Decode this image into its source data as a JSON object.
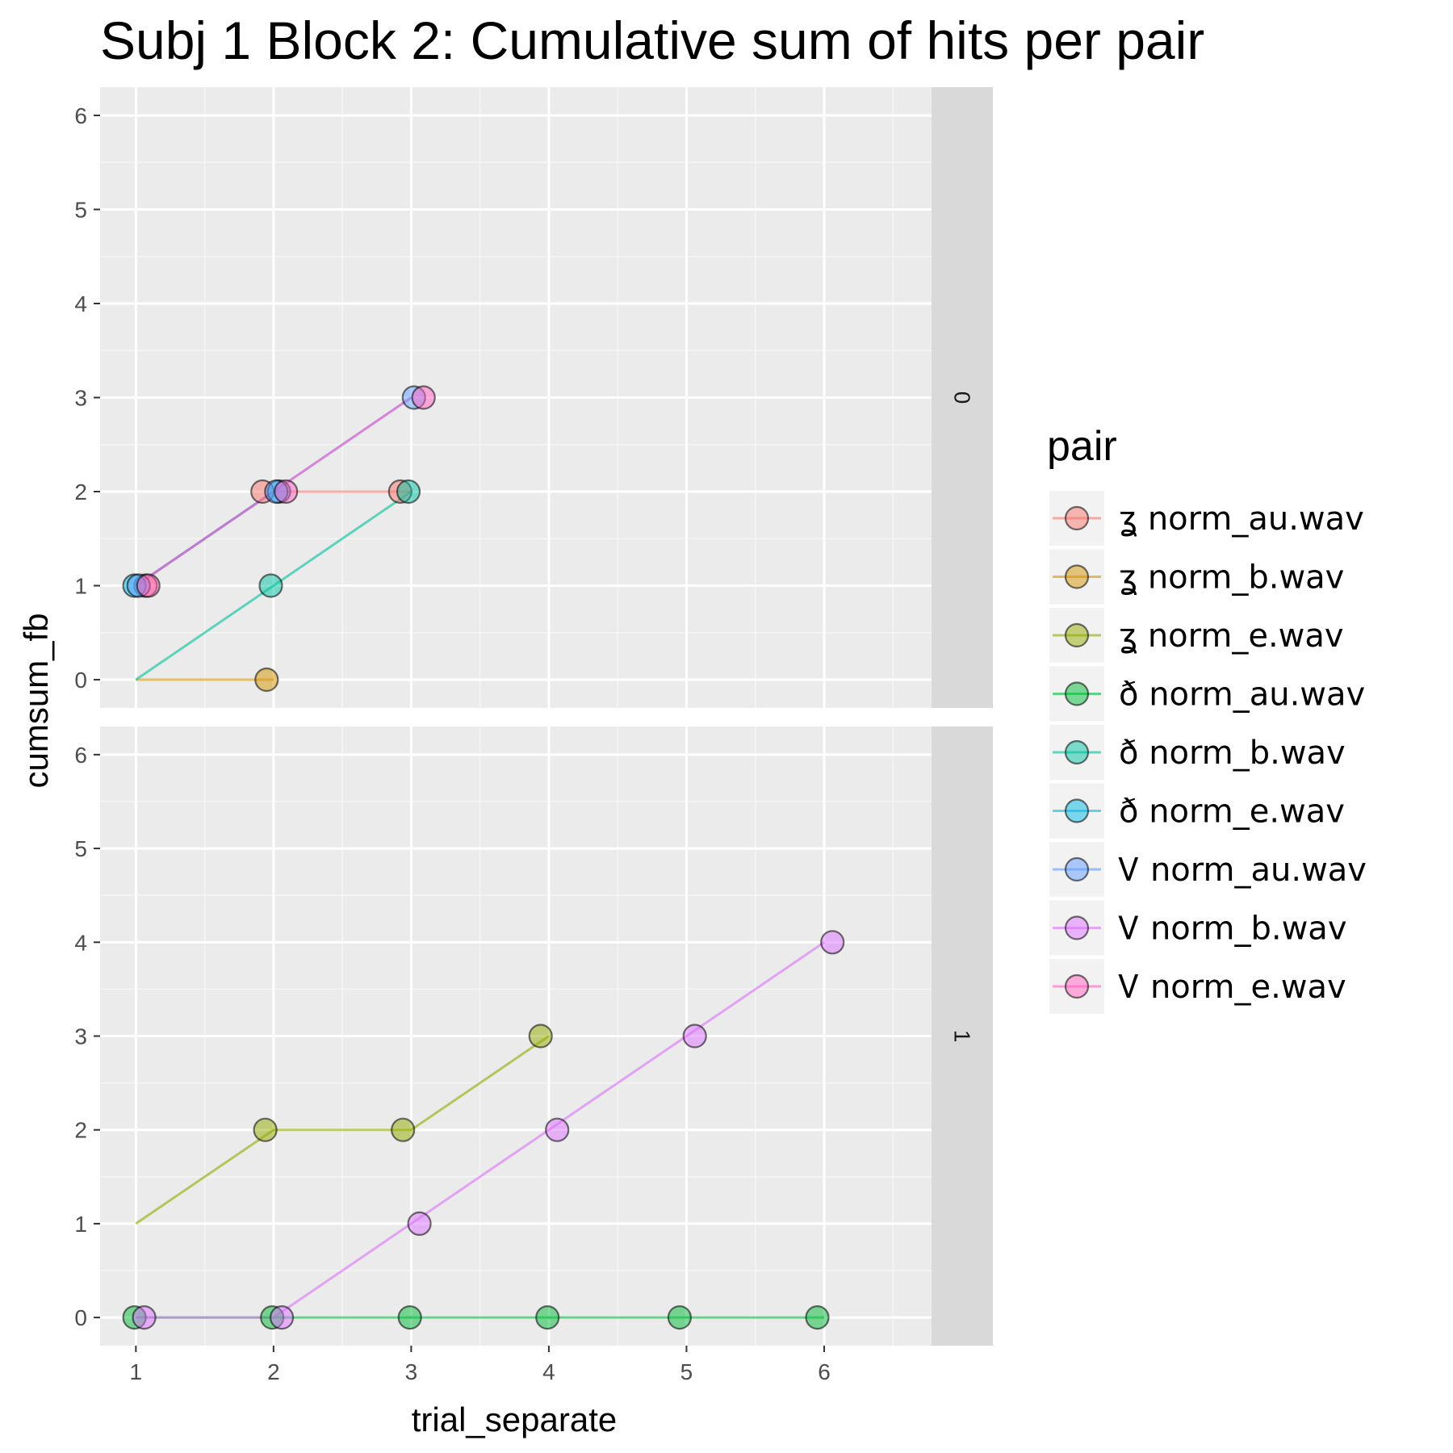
{
  "chart_data": {
    "type": "scatter",
    "title": "Subj 1 Block 2: Cumulative sum of hits per pair",
    "xlabel": "trial_separate",
    "ylabel": "cumsum_fb",
    "xlim": [
      0.74,
      6.78
    ],
    "ylim": [
      -0.3,
      6.3
    ],
    "x_ticks": [
      1,
      2,
      3,
      4,
      5,
      6
    ],
    "y_ticks": [
      0,
      1,
      2,
      3,
      4,
      5,
      6
    ],
    "grid": true,
    "legend_title": "pair",
    "legend_position": "right",
    "facets": [
      {
        "label": "0"
      },
      {
        "label": "1"
      }
    ],
    "series": [
      {
        "name": "ʓ norm_au.wav",
        "color": "#F8766D",
        "panels": [
          {
            "line": [
              [
                1,
                1
              ],
              [
                2,
                2
              ],
              [
                3,
                2
              ]
            ],
            "points": [
              [
                1.07,
                1
              ],
              [
                1.92,
                2
              ],
              [
                2.92,
                2
              ]
            ]
          },
          {
            "line": [],
            "points": []
          }
        ]
      },
      {
        "name": "ʓ norm_b.wav",
        "color": "#D39200",
        "panels": [
          {
            "line": [
              [
                1,
                0
              ],
              [
                2,
                0
              ]
            ],
            "points": [
              [
                1.95,
                0
              ]
            ]
          },
          {
            "line": [],
            "points": []
          }
        ]
      },
      {
        "name": "ʓ norm_e.wav",
        "color": "#93AA00",
        "panels": [
          {
            "line": [],
            "points": []
          },
          {
            "line": [
              [
                1,
                1
              ],
              [
                2,
                2
              ],
              [
                3,
                2
              ],
              [
                4,
                3
              ]
            ],
            "points": [
              [
                1.94,
                2
              ],
              [
                2.94,
                2
              ],
              [
                3.94,
                3
              ]
            ]
          }
        ]
      },
      {
        "name": "ð norm_au.wav",
        "color": "#00BA38",
        "panels": [
          {
            "line": [],
            "points": []
          },
          {
            "line": [
              [
                1,
                0
              ],
              [
                2,
                0
              ],
              [
                3,
                0
              ],
              [
                4,
                0
              ],
              [
                5,
                0
              ],
              [
                6,
                0
              ]
            ],
            "points": [
              [
                0.99,
                0
              ],
              [
                1.99,
                0
              ],
              [
                2.99,
                0
              ],
              [
                3.99,
                0
              ],
              [
                4.95,
                0
              ],
              [
                5.95,
                0
              ]
            ]
          }
        ]
      },
      {
        "name": "ð norm_b.wav",
        "color": "#00C19F",
        "panels": [
          {
            "line": [
              [
                1,
                0
              ],
              [
                2,
                1
              ],
              [
                3,
                2
              ]
            ],
            "points": [
              [
                1.98,
                1
              ],
              [
                2.98,
                2
              ]
            ]
          },
          {
            "line": [],
            "points": []
          }
        ]
      },
      {
        "name": "ð norm_e.wav",
        "color": "#00B9E3",
        "panels": [
          {
            "line": [
              [
                1,
                1
              ],
              [
                2,
                2
              ]
            ],
            "points": [
              [
                0.99,
                1
              ],
              [
                2.04,
                2
              ]
            ]
          },
          {
            "line": [],
            "points": []
          }
        ]
      },
      {
        "name": "Ꮩ norm_au.wav",
        "color": "#619CFF",
        "panels": [
          {
            "line": [
              [
                1,
                1
              ],
              [
                2,
                2
              ],
              [
                3,
                3
              ]
            ],
            "points": [
              [
                1.02,
                1
              ],
              [
                2.02,
                2
              ],
              [
                3.02,
                3
              ]
            ]
          },
          {
            "line": [],
            "points": []
          }
        ]
      },
      {
        "name": "Ꮩ norm_b.wav",
        "color": "#DB72FB",
        "panels": [
          {
            "line": [],
            "points": []
          },
          {
            "line": [
              [
                1,
                0
              ],
              [
                2,
                0
              ],
              [
                3,
                1
              ],
              [
                4,
                2
              ],
              [
                5,
                3
              ],
              [
                6,
                4
              ]
            ],
            "points": [
              [
                1.06,
                0
              ],
              [
                2.06,
                0
              ],
              [
                3.06,
                1
              ],
              [
                4.06,
                2
              ],
              [
                5.06,
                3
              ],
              [
                6.06,
                4
              ]
            ]
          }
        ]
      },
      {
        "name": "Ꮩ norm_e.wav",
        "color": "#FF61C3",
        "panels": [
          {
            "line": [
              [
                1,
                1
              ],
              [
                2,
                2
              ],
              [
                3,
                3
              ]
            ],
            "points": [
              [
                1.09,
                1
              ],
              [
                2.09,
                2
              ],
              [
                3.09,
                3
              ]
            ]
          },
          {
            "line": [],
            "points": []
          }
        ]
      }
    ]
  }
}
